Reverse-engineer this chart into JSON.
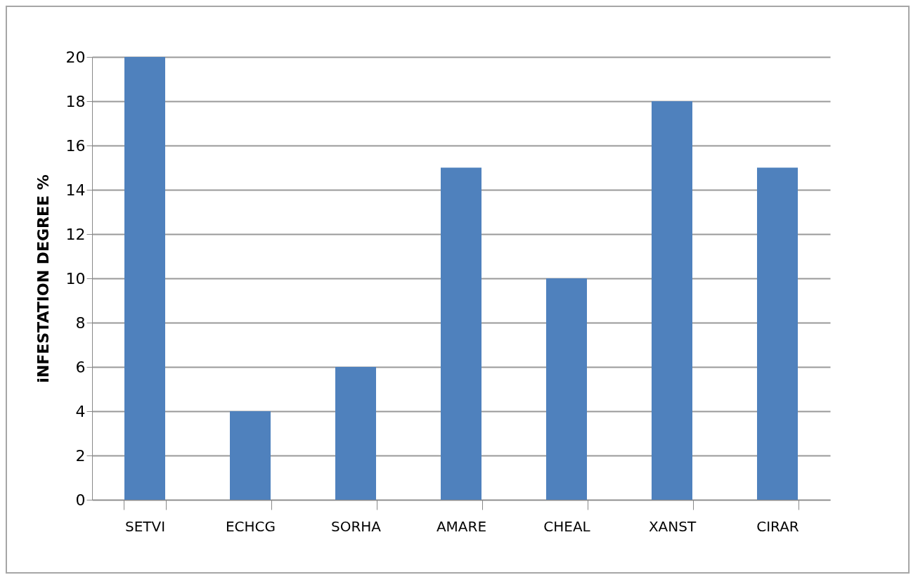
{
  "chart_data": {
    "type": "bar",
    "ylabel": "iNFESTATION DEGREE %",
    "categories": [
      "SETVI",
      "ECHCG",
      "SORHA",
      "AMARE",
      "CHEAL",
      "XANST",
      "CIRAR"
    ],
    "values": [
      20,
      4,
      6,
      15,
      10,
      18,
      15
    ],
    "color": "#4f81bd",
    "ylim": [
      0,
      20
    ],
    "yticks": [
      0,
      2,
      4,
      6,
      8,
      10,
      12,
      14,
      16,
      18,
      20
    ],
    "grid": "y"
  }
}
